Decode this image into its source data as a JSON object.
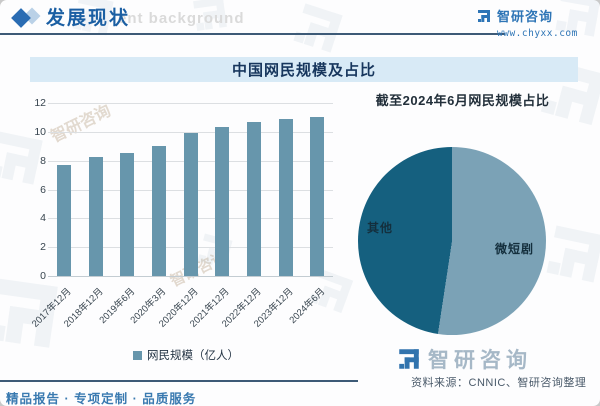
{
  "header": {
    "title": "发展现状",
    "ghost_text": "ent background",
    "brand_name": "智研咨询",
    "brand_url": "www.chyxx.com"
  },
  "background_watermark": "智研咨询",
  "chart_data": [
    {
      "type": "bar",
      "title": "中国网民规模及占比",
      "categories": [
        "2017年12月",
        "2018年12月",
        "2019年6月",
        "2020年3月",
        "2020年12月",
        "2021年12月",
        "2022年12月",
        "2023年12月",
        "2024年6月"
      ],
      "values": [
        7.72,
        8.29,
        8.54,
        9.04,
        9.89,
        10.32,
        10.67,
        10.92,
        11.0
      ],
      "legend": "网民规模（亿人）",
      "ylim": [
        0,
        12
      ],
      "y_ticks": [
        0,
        2,
        4,
        6,
        8,
        10,
        12
      ],
      "grid": true,
      "bar_color": "#6796ac"
    },
    {
      "type": "pie",
      "title": "截至2024年6月网民规模占比",
      "labels": [
        "微短剧",
        "其他"
      ],
      "values": [
        52.4,
        47.6
      ],
      "colors": [
        "#7ba2b6",
        "#15607f"
      ],
      "legend_position": "on-slice"
    }
  ],
  "footer": {
    "tagline": "精品报告 · 专项定制 · 品质服务",
    "source": "资料来源：CNNIC、智研咨询整理",
    "brand_name": "智研咨询"
  },
  "colors": {
    "accent_blue": "#2e75b6",
    "band_bg": "#d8eaf6",
    "band_text": "#17365d",
    "bar": "#6796ac",
    "pie_light": "#7ba2b6",
    "pie_dark": "#15607f",
    "rule": "#3d5a77"
  }
}
